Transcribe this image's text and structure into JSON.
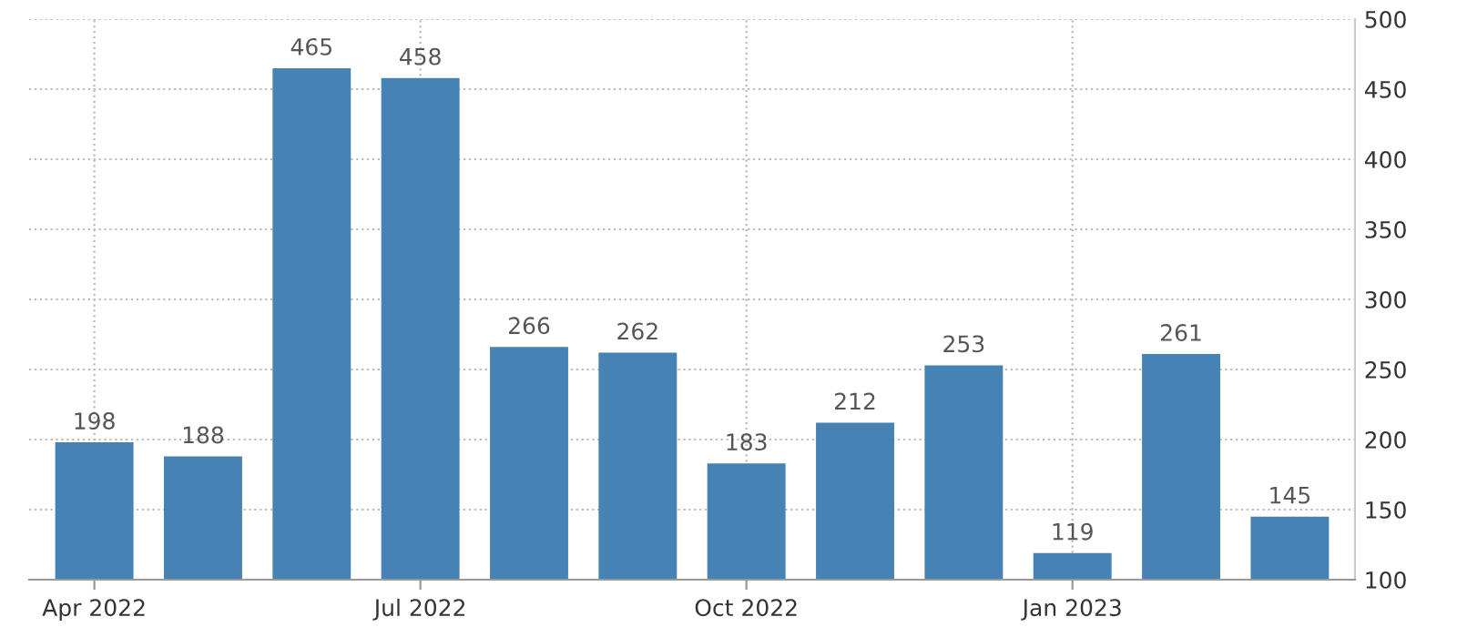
{
  "chart_data": {
    "type": "bar",
    "categories": [
      "Apr 2022",
      null,
      null,
      "Jul 2022",
      null,
      null,
      "Oct 2022",
      null,
      null,
      "Jan 2023",
      null,
      null
    ],
    "values": [
      198,
      188,
      465,
      458,
      266,
      262,
      183,
      212,
      253,
      119,
      261,
      145
    ],
    "color": "#4682b4",
    "ylim": [
      100,
      500
    ],
    "yticks": [
      100,
      150,
      200,
      250,
      300,
      350,
      400,
      450,
      500
    ],
    "grid": true,
    "data_labels": true
  }
}
